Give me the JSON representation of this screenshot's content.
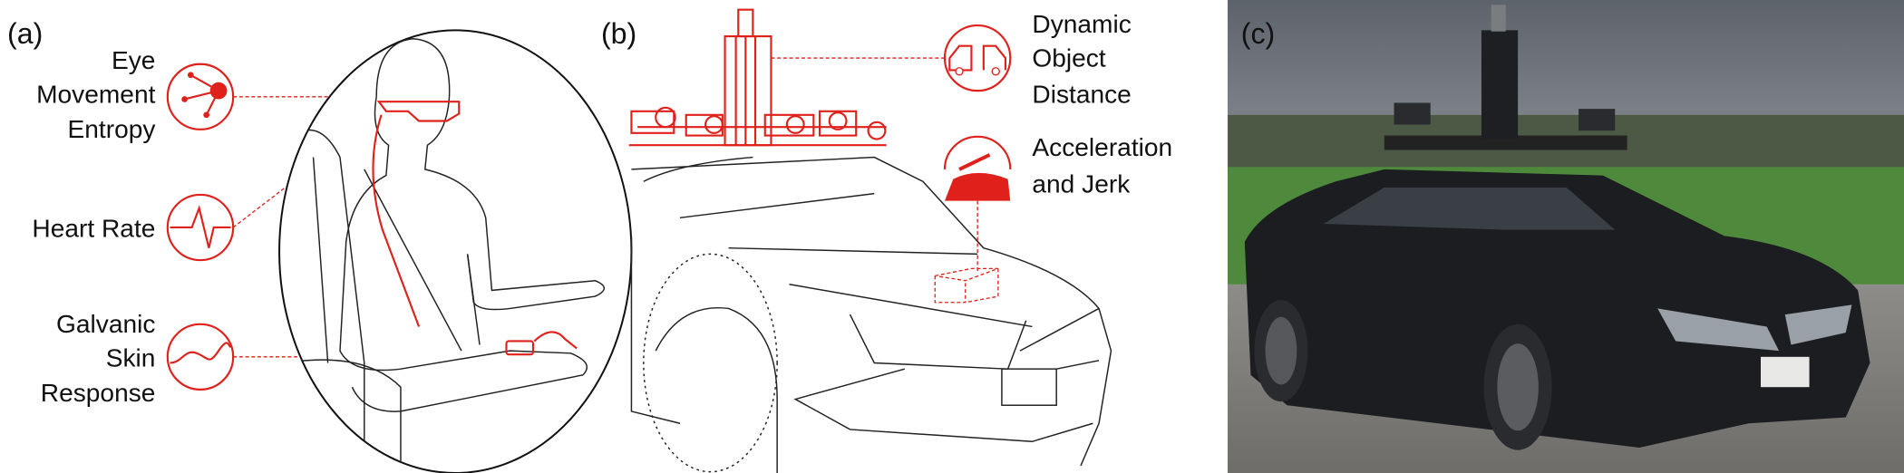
{
  "panel_a": {
    "label": "(a)",
    "signals": [
      {
        "lines": [
          "Eye",
          "Movement",
          "Entropy"
        ]
      },
      {
        "lines": [
          "Heart Rate"
        ]
      },
      {
        "lines": [
          "Galvanic",
          "Skin",
          "Response"
        ]
      }
    ]
  },
  "panel_b": {
    "label": "(b)",
    "signals": [
      {
        "lines": [
          "Dynamic",
          "Object",
          "Distance"
        ]
      },
      {
        "lines": [
          "Acceleration",
          "and Jerk"
        ]
      }
    ]
  },
  "panel_c": {
    "label": "(c)"
  }
}
